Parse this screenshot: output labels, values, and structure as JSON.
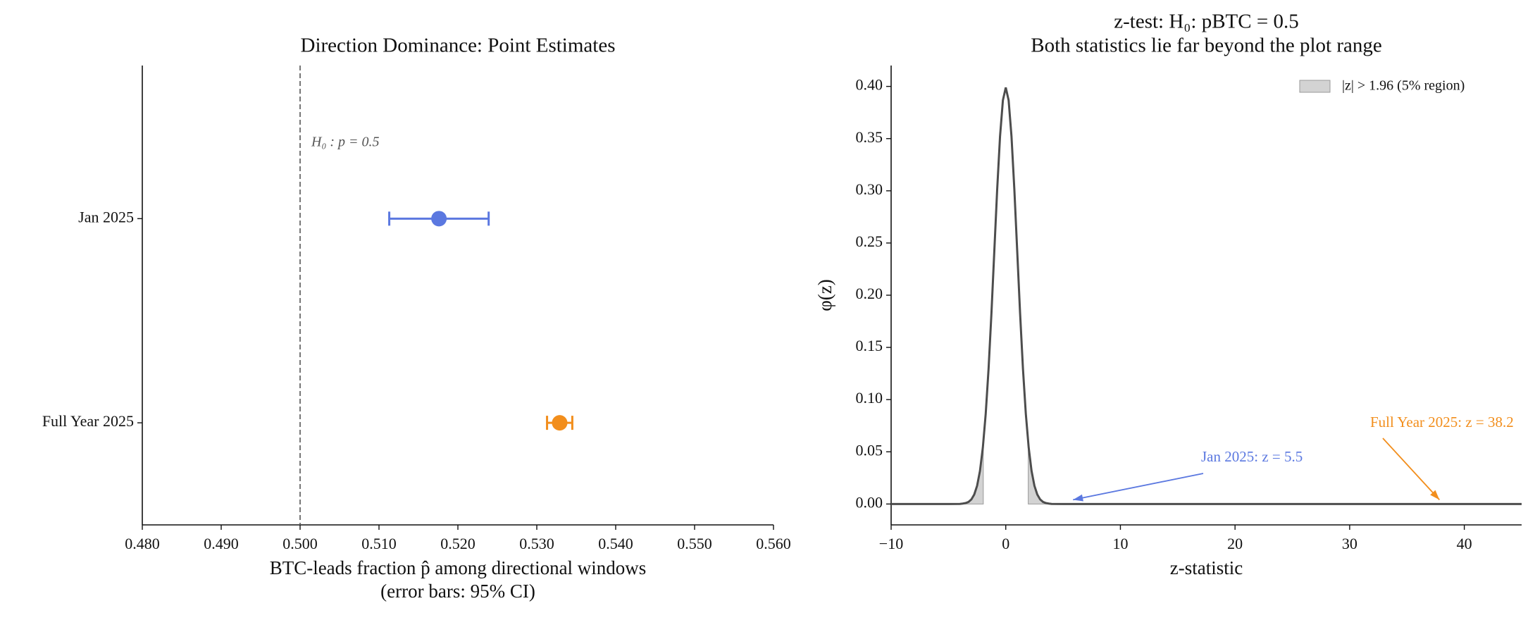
{
  "chart_data": [
    {
      "type": "errorbar",
      "title": "Direction Dominance: Point Estimates",
      "xlabel": [
        "BTC-leads fraction p̂ among directional windows",
        "(error bars: 95% CI)"
      ],
      "categories": [
        "Jan 2025",
        "Full Year 2025"
      ],
      "values": [
        0.5176,
        0.5329
      ],
      "errors": [
        0.0063,
        0.0016
      ],
      "colors": [
        "#5b78e0",
        "#f28e1c"
      ],
      "xlim": [
        0.48,
        0.56
      ],
      "xticks": [
        {
          "value": 0.48,
          "label": "0.480"
        },
        {
          "value": 0.49,
          "label": "0.490"
        },
        {
          "value": 0.5,
          "label": "0.500"
        },
        {
          "value": 0.51,
          "label": "0.510"
        },
        {
          "value": 0.52,
          "label": "0.520"
        },
        {
          "value": 0.53,
          "label": "0.530"
        },
        {
          "value": 0.54,
          "label": "0.540"
        },
        {
          "value": 0.55,
          "label": "0.550"
        },
        {
          "value": 0.56,
          "label": "0.560"
        }
      ],
      "reference_line": {
        "value": 0.5,
        "label": "H₀ : p = 0.5"
      }
    },
    {
      "type": "line",
      "title": "z-test: H₀: pBTC = 0.5",
      "subtitle": "Both statistics lie far beyond the plot range",
      "xlabel": "z-statistic",
      "ylabel": "φ(z)",
      "x": [
        -10,
        -5,
        -4,
        -3.75,
        -3.5,
        -3.25,
        -3,
        -2.75,
        -2.5,
        -2.25,
        -2,
        -1.75,
        -1.5,
        -1.25,
        -1,
        -0.75,
        -0.5,
        -0.25,
        0,
        0.25,
        0.5,
        0.75,
        1,
        1.25,
        1.5,
        1.75,
        2,
        2.25,
        2.5,
        2.75,
        3,
        3.25,
        3.5,
        3.75,
        4,
        5,
        10,
        20,
        30,
        40,
        45
      ],
      "values": [
        0,
        0,
        0.0001,
        0.0004,
        0.0009,
        0.002,
        0.0044,
        0.0091,
        0.0175,
        0.0317,
        0.054,
        0.0863,
        0.1295,
        0.1826,
        0.242,
        0.3011,
        0.3521,
        0.3867,
        0.3989,
        0.3867,
        0.3521,
        0.3011,
        0.242,
        0.1826,
        0.1295,
        0.0863,
        0.054,
        0.0317,
        0.0175,
        0.0091,
        0.0044,
        0.002,
        0.0009,
        0.0004,
        0.0001,
        0,
        0,
        0,
        0,
        0,
        0
      ],
      "color": "#4d4d4d",
      "shaded_region": {
        "label": "|z| > 1.96 (5% region)",
        "threshold": 1.96,
        "color": "#d3d3d3"
      },
      "legend": "upper right",
      "annotations": [
        {
          "text": "Jan 2025: z = 5.5",
          "x": 5.5,
          "y": 0,
          "color": "#5b78e0"
        },
        {
          "text": "Full Year 2025: z = 38.2",
          "x": 38.2,
          "y": 0,
          "color": "#f28e1c"
        }
      ],
      "xlim": [
        -10,
        45
      ],
      "xticks": [
        {
          "value": -10,
          "label": "−10"
        },
        0,
        10,
        20,
        30,
        40
      ],
      "ylim": [
        -0.02,
        0.42
      ],
      "yticks": [
        {
          "value": 0,
          "label": "0.00"
        },
        {
          "value": 0.05,
          "label": "0.05"
        },
        {
          "value": 0.1,
          "label": "0.10"
        },
        {
          "value": 0.15,
          "label": "0.15"
        },
        {
          "value": 0.2,
          "label": "0.20"
        },
        {
          "value": 0.25,
          "label": "0.25"
        },
        {
          "value": 0.3,
          "label": "0.30"
        },
        {
          "value": 0.35,
          "label": "0.35"
        },
        {
          "value": 0.4,
          "label": "0.40"
        }
      ]
    }
  ]
}
